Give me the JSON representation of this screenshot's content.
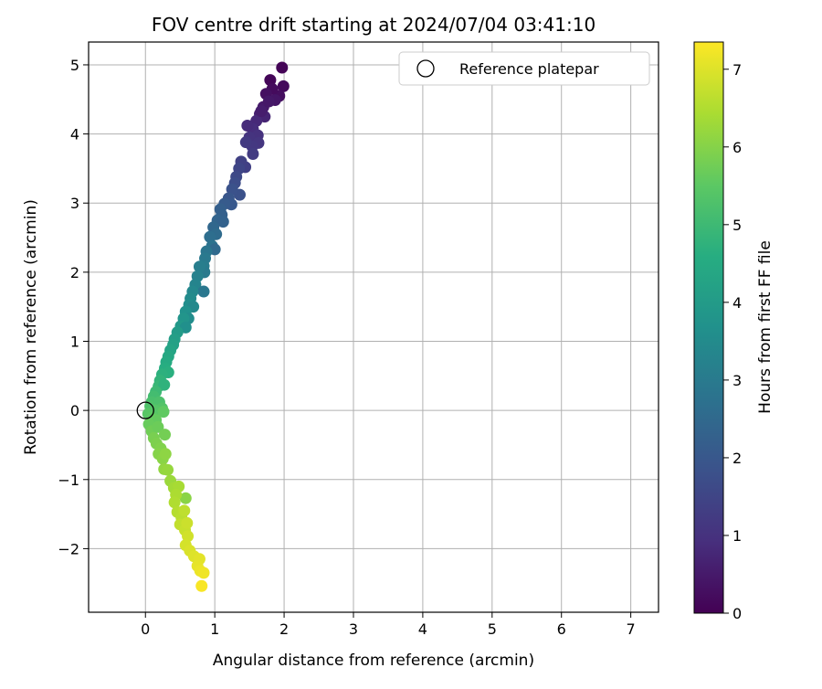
{
  "chart_data": {
    "type": "scatter",
    "title": "FOV centre drift starting at 2024/07/04 03:41:10",
    "xlabel": "Angular distance from reference (arcmin)",
    "ylabel": "Rotation from reference (arcmin)",
    "xlim": [
      -0.82,
      7.4
    ],
    "ylim": [
      -2.92,
      5.33
    ],
    "xticks": [
      0,
      1,
      2,
      3,
      4,
      5,
      6,
      7
    ],
    "yticks": [
      -2,
      -1,
      0,
      1,
      2,
      3,
      4,
      5
    ],
    "grid": true,
    "legend": {
      "placement": "top-right",
      "entries": [
        "Reference platepar"
      ]
    },
    "reference_point": {
      "name": "Reference platepar",
      "x": 0.0,
      "y": 0.0
    },
    "colorbar": {
      "label": "Hours from first FF file",
      "range": [
        0,
        7.35
      ],
      "ticks": [
        0,
        1,
        2,
        3,
        4,
        5,
        6,
        7
      ],
      "colormap": "viridis"
    },
    "series": [
      {
        "points": [
          [
            1.97,
            4.96,
            0.05
          ],
          [
            1.99,
            4.69,
            0.15
          ],
          [
            1.93,
            4.55,
            0.25
          ],
          [
            1.8,
            4.78,
            0.1
          ],
          [
            1.83,
            4.65,
            0.2
          ],
          [
            1.74,
            4.58,
            0.3
          ],
          [
            1.87,
            4.49,
            0.4
          ],
          [
            1.7,
            4.39,
            0.5
          ],
          [
            1.78,
            4.47,
            0.45
          ],
          [
            1.65,
            4.29,
            0.6
          ],
          [
            1.72,
            4.25,
            0.7
          ],
          [
            1.6,
            4.19,
            0.8
          ],
          [
            1.67,
            4.33,
            0.55
          ],
          [
            1.55,
            4.07,
            0.9
          ],
          [
            1.62,
            3.98,
            1.0
          ],
          [
            1.5,
            3.95,
            1.05
          ],
          [
            1.63,
            3.87,
            1.1
          ],
          [
            1.47,
            4.12,
            0.85
          ],
          [
            1.54,
            3.82,
            1.15
          ],
          [
            1.55,
            3.71,
            1.25
          ],
          [
            1.45,
            3.88,
            1.2
          ],
          [
            1.44,
            3.52,
            1.35
          ],
          [
            1.38,
            3.6,
            1.4
          ],
          [
            1.35,
            3.5,
            1.5
          ],
          [
            1.31,
            3.38,
            1.6
          ],
          [
            1.29,
            3.29,
            1.7
          ],
          [
            1.36,
            3.12,
            1.8
          ],
          [
            1.25,
            3.2,
            1.85
          ],
          [
            1.2,
            3.07,
            1.95
          ],
          [
            1.24,
            2.98,
            2.0
          ],
          [
            1.14,
            2.99,
            2.1
          ],
          [
            1.08,
            2.91,
            2.2
          ],
          [
            1.1,
            2.83,
            2.25
          ],
          [
            1.04,
            2.75,
            2.35
          ],
          [
            1.12,
            2.73,
            2.3
          ],
          [
            0.98,
            2.65,
            2.45
          ],
          [
            1.02,
            2.55,
            2.55
          ],
          [
            0.93,
            2.51,
            2.65
          ],
          [
            0.96,
            2.38,
            2.75
          ],
          [
            1.0,
            2.33,
            2.5
          ],
          [
            0.88,
            2.3,
            2.85
          ],
          [
            0.86,
            2.2,
            2.95
          ],
          [
            0.84,
            2.09,
            3.05
          ],
          [
            0.85,
            2.0,
            3.0
          ],
          [
            0.78,
            2.08,
            3.1
          ],
          [
            0.75,
            1.94,
            3.2
          ],
          [
            0.72,
            1.82,
            3.3
          ],
          [
            0.84,
            1.72,
            2.9
          ],
          [
            0.68,
            1.72,
            3.4
          ],
          [
            0.65,
            1.62,
            3.5
          ],
          [
            0.63,
            1.53,
            3.6
          ],
          [
            0.69,
            1.5,
            3.45
          ],
          [
            0.58,
            1.43,
            3.7
          ],
          [
            0.62,
            1.33,
            3.55
          ],
          [
            0.55,
            1.33,
            3.8
          ],
          [
            0.51,
            1.22,
            3.9
          ],
          [
            0.58,
            1.2,
            3.65
          ],
          [
            0.46,
            1.13,
            4.0
          ],
          [
            0.42,
            1.03,
            4.1
          ],
          [
            0.4,
            0.95,
            4.2
          ],
          [
            0.36,
            0.87,
            4.3
          ],
          [
            0.33,
            0.78,
            4.4
          ],
          [
            0.3,
            0.7,
            4.5
          ],
          [
            0.28,
            0.61,
            4.6
          ],
          [
            0.33,
            0.55,
            4.65
          ],
          [
            0.24,
            0.52,
            4.7
          ],
          [
            0.21,
            0.43,
            4.8
          ],
          [
            0.19,
            0.35,
            4.9
          ],
          [
            0.27,
            0.37,
            4.75
          ],
          [
            0.15,
            0.27,
            5.0
          ],
          [
            0.12,
            0.2,
            5.1
          ],
          [
            0.09,
            0.12,
            5.2
          ],
          [
            0.07,
            0.06,
            5.3
          ],
          [
            0.2,
            0.12,
            5.25
          ],
          [
            0.24,
            0.03,
            5.35
          ],
          [
            0.14,
            0.0,
            5.4
          ],
          [
            0.04,
            -0.05,
            5.45
          ],
          [
            0.1,
            -0.1,
            5.5
          ],
          [
            0.26,
            -0.02,
            5.55
          ],
          [
            0.15,
            -0.14,
            5.6
          ],
          [
            0.05,
            -0.2,
            5.65
          ],
          [
            0.09,
            -0.3,
            5.75
          ],
          [
            0.18,
            -0.24,
            5.7
          ],
          [
            0.28,
            -0.35,
            5.8
          ],
          [
            0.12,
            -0.4,
            5.85
          ],
          [
            0.16,
            -0.48,
            5.9
          ],
          [
            0.22,
            -0.55,
            5.95
          ],
          [
            0.19,
            -0.63,
            6.0
          ],
          [
            0.25,
            -0.7,
            6.05
          ],
          [
            0.29,
            -0.63,
            6.1
          ],
          [
            0.27,
            -0.85,
            6.15
          ],
          [
            0.32,
            -0.86,
            6.2
          ],
          [
            0.36,
            -1.02,
            6.25
          ],
          [
            0.41,
            -1.12,
            6.35
          ],
          [
            0.48,
            -1.1,
            6.4
          ],
          [
            0.58,
            -1.27,
            6.05
          ],
          [
            0.44,
            -1.22,
            6.45
          ],
          [
            0.42,
            -1.33,
            6.5
          ],
          [
            0.46,
            -1.47,
            6.55
          ],
          [
            0.52,
            -1.55,
            6.6
          ],
          [
            0.56,
            -1.45,
            6.65
          ],
          [
            0.5,
            -1.65,
            6.7
          ],
          [
            0.57,
            -1.73,
            6.75
          ],
          [
            0.6,
            -1.63,
            6.8
          ],
          [
            0.61,
            -1.82,
            6.85
          ],
          [
            0.58,
            -1.95,
            6.9
          ],
          [
            0.64,
            -2.03,
            6.95
          ],
          [
            0.7,
            -2.11,
            7.0
          ],
          [
            0.78,
            -2.15,
            7.05
          ],
          [
            0.75,
            -2.25,
            7.1
          ],
          [
            0.79,
            -2.32,
            7.15
          ],
          [
            0.84,
            -2.35,
            7.2
          ],
          [
            0.81,
            -2.54,
            7.3
          ]
        ]
      }
    ]
  }
}
